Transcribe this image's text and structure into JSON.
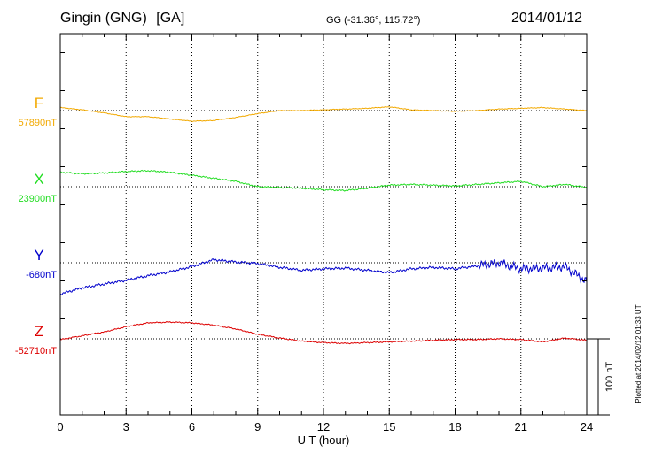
{
  "header": {
    "station": "Gingin (GNG)",
    "code": "[GA]",
    "coords": "GG (-31.36°, 115.72°)",
    "date": "2014/01/12"
  },
  "footer_note": "Plotted at 2014/02/12 01:33 UT",
  "scale_label": "100 nT",
  "colors": {
    "F": "#f2a900",
    "X": "#22dd22",
    "Y": "#0000cc",
    "Z": "#dd0000",
    "axis": "#000000",
    "grid": "#000000"
  },
  "chart_data": {
    "type": "line",
    "title": "Gingin (GNG) [GA] 2014/01/12",
    "xlabel": "U T (hour)",
    "xlim": [
      0,
      24
    ],
    "xticks": [
      0,
      3,
      6,
      9,
      12,
      15,
      18,
      21,
      24
    ],
    "xtick_labels": [
      "0",
      "3",
      "6",
      "9",
      "12",
      "15",
      "18",
      "21",
      "24"
    ],
    "y_units": "nT",
    "scale_bar_nT": 100,
    "series": [
      {
        "name": "F",
        "baseline_label": "57890nT",
        "baseline_nT": 57890,
        "x": [
          0,
          1,
          2,
          3,
          4,
          5,
          6,
          7,
          8,
          9,
          10,
          11,
          12,
          13,
          14,
          15,
          16,
          17,
          18,
          19,
          20,
          21,
          22,
          23,
          24
        ],
        "y": [
          57894,
          57891,
          57887,
          57882,
          57882,
          57879,
          57876,
          57877,
          57881,
          57886,
          57890,
          57890,
          57891,
          57892,
          57893,
          57895,
          57891,
          57890,
          57889,
          57890,
          57892,
          57893,
          57894,
          57892,
          57890
        ]
      },
      {
        "name": "X",
        "baseline_label": "23900nT",
        "baseline_nT": 23900,
        "x": [
          0,
          1,
          2,
          3,
          4,
          5,
          6,
          7,
          8,
          9,
          10,
          11,
          12,
          13,
          14,
          15,
          16,
          17,
          18,
          19,
          20,
          21,
          22,
          23,
          24
        ],
        "y": [
          23919,
          23917,
          23918,
          23920,
          23921,
          23919,
          23915,
          23911,
          23907,
          23900,
          23899,
          23898,
          23896,
          23895,
          23898,
          23902,
          23903,
          23902,
          23901,
          23903,
          23905,
          23907,
          23900,
          23903,
          23899
        ]
      },
      {
        "name": "Y",
        "baseline_label": "-680nT",
        "baseline_nT": -680,
        "x": [
          0,
          1,
          2,
          3,
          4,
          5,
          6,
          7,
          8,
          9,
          10,
          11,
          12,
          13,
          14,
          15,
          16,
          17,
          18,
          19,
          20,
          21,
          22,
          23,
          24
        ],
        "y": [
          -721,
          -713,
          -708,
          -703,
          -697,
          -692,
          -685,
          -676,
          -679,
          -681,
          -686,
          -690,
          -688,
          -687,
          -690,
          -693,
          -688,
          -686,
          -688,
          -684,
          -680,
          -688,
          -687,
          -685,
          -705
        ]
      },
      {
        "name": "Z",
        "baseline_label": "-52710nT",
        "baseline_nT": -52710,
        "x": [
          0,
          1,
          2,
          3,
          4,
          5,
          6,
          7,
          8,
          9,
          10,
          11,
          12,
          13,
          14,
          15,
          16,
          17,
          18,
          19,
          20,
          21,
          22,
          23,
          24
        ],
        "y": [
          -52711,
          -52706,
          -52701,
          -52694,
          -52689,
          -52688,
          -52689,
          -52692,
          -52697,
          -52704,
          -52709,
          -52713,
          -52715,
          -52716,
          -52715,
          -52714,
          -52713,
          -52712,
          -52711,
          -52711,
          -52710,
          -52711,
          -52714,
          -52709,
          -52712
        ]
      }
    ]
  }
}
